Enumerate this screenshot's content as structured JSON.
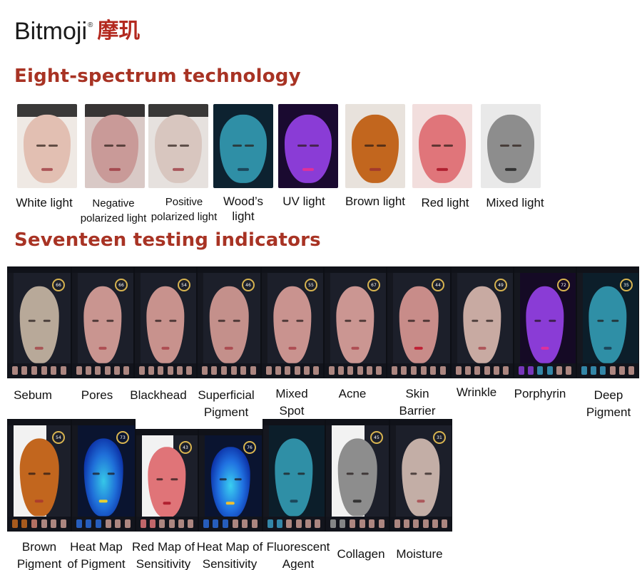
{
  "brand": {
    "logo_text": "Bitmoji",
    "registered": "®",
    "chinese_name": "摩玑"
  },
  "headings": {
    "spectrum": "Eight-spectrum technology",
    "indicators": "Seventeen testing indicators"
  },
  "spectrum": [
    {
      "line1": "White light",
      "line2": "",
      "size": "big"
    },
    {
      "line1": "Negative",
      "line2": "polarized light",
      "size": "small"
    },
    {
      "line1": "Positive",
      "line2": "polarized light",
      "size": "small"
    },
    {
      "line1": "Wood’s",
      "line2": "light",
      "size": "big"
    },
    {
      "line1": "UV light",
      "line2": "",
      "size": "big"
    },
    {
      "line1": "Brown light",
      "line2": "",
      "size": "big"
    },
    {
      "line1": "Red light",
      "line2": "",
      "size": "big"
    },
    {
      "line1": "Mixed light",
      "line2": "",
      "size": "big"
    }
  ],
  "indicators_row1": [
    {
      "line1": "Sebum",
      "line2": "",
      "score": "66"
    },
    {
      "line1": "Pores",
      "line2": "",
      "score": "66"
    },
    {
      "line1": "Blackhead",
      "line2": "",
      "score": "54"
    },
    {
      "line1": "Superficial",
      "line2": "Pigment",
      "score": "46"
    },
    {
      "line1": "Mixed",
      "line2": "Spot",
      "score": "55"
    },
    {
      "line1": "Acne",
      "line2": "",
      "score": "67"
    },
    {
      "line1": "Skin",
      "line2": "Barrier",
      "score": "44"
    },
    {
      "line1": "Wrinkle",
      "line2": "",
      "score": "49"
    },
    {
      "line1": "Porphyrin",
      "line2": "",
      "score": "72"
    },
    {
      "line1": "Deep",
      "line2": "Pigment",
      "score": "35"
    }
  ],
  "indicators_row2": [
    {
      "line1": "Brown",
      "line2": "Pigment",
      "score": "54"
    },
    {
      "line1": "Heat Map",
      "line2": "of Pigment",
      "score": "73"
    },
    {
      "line1": "Red Map of",
      "line2": "Sensitivity",
      "score": "43"
    },
    {
      "line1": "Heat Map of",
      "line2": "Sensitivity",
      "score": "76"
    },
    {
      "line1": "Fluorescent",
      "line2": "Agent",
      "score": ""
    },
    {
      "line1": "Collagen",
      "line2": "",
      "score": "45"
    },
    {
      "line1": "Moisture",
      "line2": "",
      "score": "31"
    }
  ]
}
